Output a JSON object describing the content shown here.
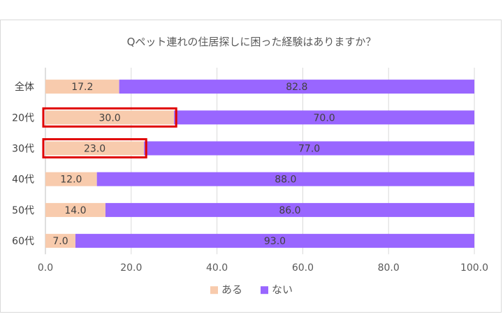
{
  "chart_data": {
    "type": "bar",
    "orientation": "horizontal",
    "stacked": true,
    "title": "Qペット連れの住居探しに困った経験はありますか？",
    "categories": [
      "全体",
      "20代",
      "30代",
      "40代",
      "50代",
      "60代"
    ],
    "series": [
      {
        "name": "ある",
        "color": "#f8cbad",
        "values": [
          17.2,
          30.0,
          23.0,
          12.0,
          14.0,
          7.0
        ]
      },
      {
        "name": "ない",
        "color": "#9966ff",
        "values": [
          82.8,
          70.0,
          77.0,
          88.0,
          86.0,
          93.0
        ]
      }
    ],
    "data_labels": [
      [
        "17.2",
        "30.0",
        "23.0",
        "12.0",
        "14.0",
        "7.0"
      ],
      [
        "82.8",
        "70.0",
        "77.0",
        "88.0",
        "86.0",
        "93.0"
      ]
    ],
    "xlim": [
      0,
      100
    ],
    "x_ticks": [
      "0.0",
      "20.0",
      "40.0",
      "60.0",
      "80.0",
      "100.0"
    ],
    "grid": "vertical",
    "legend_position": "bottom",
    "highlighted_categories": [
      "20代",
      "30代"
    ],
    "highlight_color": "#e00000"
  }
}
